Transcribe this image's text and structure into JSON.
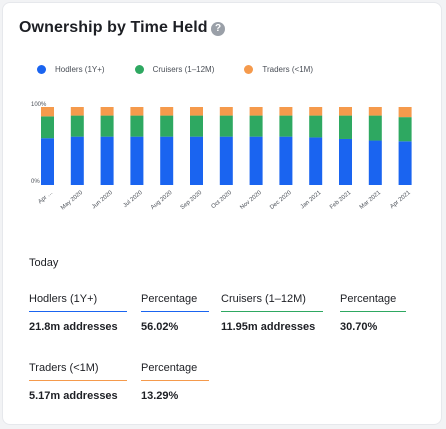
{
  "title": "Ownership by Time Held",
  "help_icon": "help-circle-icon",
  "colors": {
    "hodlers": "#1a64f0",
    "cruisers": "#2ea861",
    "traders": "#f59a4c"
  },
  "legend": [
    {
      "label": "Hodlers (1Y+)",
      "color": "#1a64f0"
    },
    {
      "label": "Cruisers (1–12M)",
      "color": "#2ea861"
    },
    {
      "label": "Traders (<1M)",
      "color": "#f59a4c"
    }
  ],
  "chart_data": {
    "type": "bar",
    "stacked": true,
    "percent": true,
    "ylim": [
      0,
      100
    ],
    "ytick_labels": [
      "100%",
      "0%"
    ],
    "categories": [
      "Apr …",
      "May 2020",
      "Jun 2020",
      "Jul 2020",
      "Aug 2020",
      "Sep 2020",
      "Oct 2020",
      "Nov 2020",
      "Dec 2020",
      "Jan 2021",
      "Feb 2021",
      "Mar 2021",
      "Apr 2021"
    ],
    "series": [
      {
        "name": "Hodlers (1Y+)",
        "color": "#1a64f0",
        "values": [
          60,
          62,
          62,
          62,
          62,
          62,
          62,
          62,
          62,
          61,
          59,
          57,
          56
        ]
      },
      {
        "name": "Cruisers (1–12M)",
        "color": "#2ea861",
        "values": [
          28,
          27,
          27,
          27,
          27,
          27,
          27,
          27,
          27,
          28,
          30,
          32,
          31
        ]
      },
      {
        "name": "Traders (<1M)",
        "color": "#f59a4c",
        "values": [
          12,
          11,
          11,
          11,
          11,
          11,
          11,
          11,
          11,
          11,
          11,
          11,
          13
        ]
      }
    ]
  },
  "today_label": "Today",
  "stats": [
    {
      "label": "Hodlers (1Y+)",
      "value": "21.8m addresses",
      "color": "#1a64f0"
    },
    {
      "label": "Percentage",
      "value": "56.02%",
      "color": "#1a64f0"
    },
    {
      "label": "Cruisers (1–12M)",
      "value": "11.95m addresses",
      "color": "#2ea861"
    },
    {
      "label": "Percentage",
      "value": "30.70%",
      "color": "#2ea861"
    },
    {
      "label": "Traders (<1M)",
      "value": "5.17m addresses",
      "color": "#f59a4c"
    },
    {
      "label": "Percentage",
      "value": "13.29%",
      "color": "#f59a4c"
    }
  ]
}
